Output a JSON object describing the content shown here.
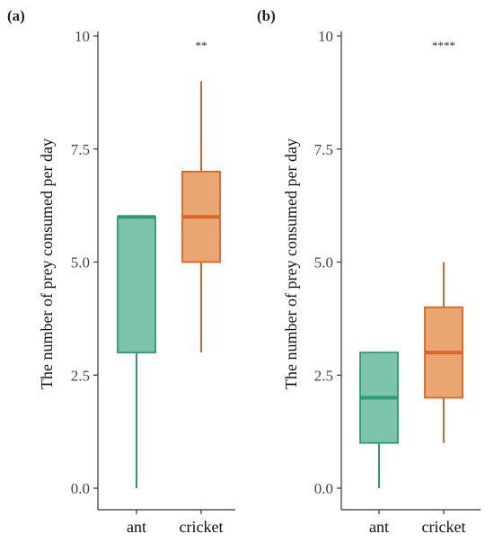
{
  "chart_data": [
    {
      "type": "box",
      "panel_label": "(a)",
      "ylabel": "The number of prey consumed per day",
      "xlabel": "",
      "ylim": [
        0,
        10
      ],
      "yticks": [
        "0.0",
        "2.5",
        "5.0",
        "7.5",
        "10"
      ],
      "ytick_values": [
        0,
        2.5,
        5,
        7.5,
        10
      ],
      "grid": false,
      "categories": [
        "ant",
        "cricket"
      ],
      "boxes": [
        {
          "category": "ant",
          "min": 0,
          "q1": 3,
          "median": 6,
          "q3": 6,
          "max": 6
        },
        {
          "category": "cricket",
          "min": 3,
          "q1": 5,
          "median": 6,
          "q3": 7,
          "max": 9
        }
      ],
      "significance": "**"
    },
    {
      "type": "box",
      "panel_label": "(b)",
      "ylabel": "The number of prey consumed per day",
      "xlabel": "",
      "ylim": [
        0,
        10
      ],
      "yticks": [
        "0.0",
        "2.5",
        "5.0",
        "7.5",
        "10"
      ],
      "ytick_values": [
        0,
        2.5,
        5,
        7.5,
        10
      ],
      "grid": false,
      "categories": [
        "ant",
        "cricket"
      ],
      "boxes": [
        {
          "category": "ant",
          "min": 0,
          "q1": 1,
          "median": 2,
          "q3": 3,
          "max": 3
        },
        {
          "category": "cricket",
          "min": 1,
          "q1": 2,
          "median": 3,
          "q3": 4,
          "max": 5
        }
      ],
      "significance": "****"
    }
  ],
  "colors": {
    "ant_fill": "#7cc4a9",
    "ant_stroke": "#2c9b75",
    "cricket_fill": "#eaa670",
    "cricket_stroke": "#d8662a",
    "axis": "#333333"
  }
}
